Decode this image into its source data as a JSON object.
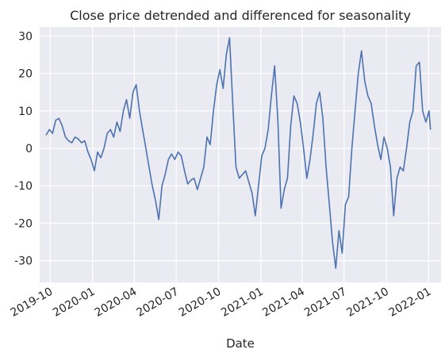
{
  "chart_data": {
    "type": "line",
    "title": "Close price detrended and differenced for seasonality",
    "xlabel": "Date",
    "ylabel": "",
    "xlim": [
      "2019-09-08",
      "2022-01-28"
    ],
    "ylim": [
      -35.8,
      32.4
    ],
    "x_ticks": [
      "2019-10",
      "2020-01",
      "2020-04",
      "2020-07",
      "2020-10",
      "2021-01",
      "2021-04",
      "2021-07",
      "2021-10",
      "2022-01"
    ],
    "y_ticks": [
      -30,
      -20,
      -10,
      0,
      10,
      20,
      30
    ],
    "grid": true,
    "legend": "none",
    "line_color": "#4c72b0",
    "background_color": "#eaeaf2",
    "series": [
      {
        "points": [
          [
            "2019-09-22",
            3.5
          ],
          [
            "2019-09-29",
            5.0
          ],
          [
            "2019-10-06",
            4.0
          ],
          [
            "2019-10-13",
            7.5
          ],
          [
            "2019-10-20",
            8.0
          ],
          [
            "2019-10-27",
            6.0
          ],
          [
            "2019-11-03",
            3.0
          ],
          [
            "2019-11-10",
            2.0
          ],
          [
            "2019-11-17",
            1.5
          ],
          [
            "2019-11-24",
            3.0
          ],
          [
            "2019-12-01",
            2.5
          ],
          [
            "2019-12-08",
            1.5
          ],
          [
            "2019-12-15",
            2.0
          ],
          [
            "2019-12-22",
            -1.0
          ],
          [
            "2019-12-29",
            -3.0
          ],
          [
            "2020-01-05",
            -6.0
          ],
          [
            "2020-01-12",
            -1.0
          ],
          [
            "2020-01-19",
            -2.5
          ],
          [
            "2020-01-26",
            0.0
          ],
          [
            "2020-02-02",
            4.0
          ],
          [
            "2020-02-09",
            5.0
          ],
          [
            "2020-02-16",
            3.0
          ],
          [
            "2020-02-23",
            7.0
          ],
          [
            "2020-03-01",
            4.5
          ],
          [
            "2020-03-08",
            10.0
          ],
          [
            "2020-03-15",
            13.0
          ],
          [
            "2020-03-22",
            8.0
          ],
          [
            "2020-03-29",
            15.0
          ],
          [
            "2020-04-05",
            17.0
          ],
          [
            "2020-04-12",
            10.0
          ],
          [
            "2020-04-19",
            5.0
          ],
          [
            "2020-04-26",
            0.0
          ],
          [
            "2020-05-03",
            -5.0
          ],
          [
            "2020-05-10",
            -10.0
          ],
          [
            "2020-05-17",
            -14.0
          ],
          [
            "2020-05-24",
            -19.0
          ],
          [
            "2020-05-31",
            -10.0
          ],
          [
            "2020-06-07",
            -7.0
          ],
          [
            "2020-06-14",
            -3.0
          ],
          [
            "2020-06-21",
            -1.5
          ],
          [
            "2020-06-28",
            -3.0
          ],
          [
            "2020-07-05",
            -1.0
          ],
          [
            "2020-07-12",
            -2.0
          ],
          [
            "2020-07-19",
            -6.0
          ],
          [
            "2020-07-26",
            -9.5
          ],
          [
            "2020-08-02",
            -8.5
          ],
          [
            "2020-08-09",
            -8.0
          ],
          [
            "2020-08-16",
            -11.0
          ],
          [
            "2020-08-23",
            -8.0
          ],
          [
            "2020-08-30",
            -5.0
          ],
          [
            "2020-09-06",
            3.0
          ],
          [
            "2020-09-13",
            1.0
          ],
          [
            "2020-09-20",
            10.0
          ],
          [
            "2020-09-27",
            17.0
          ],
          [
            "2020-10-04",
            21.0
          ],
          [
            "2020-10-11",
            16.0
          ],
          [
            "2020-10-18",
            25.0
          ],
          [
            "2020-10-25",
            29.5
          ],
          [
            "2020-11-01",
            12.0
          ],
          [
            "2020-11-08",
            -5.0
          ],
          [
            "2020-11-15",
            -8.0
          ],
          [
            "2020-11-22",
            -7.0
          ],
          [
            "2020-11-29",
            -6.0
          ],
          [
            "2020-12-06",
            -9.0
          ],
          [
            "2020-12-13",
            -12.0
          ],
          [
            "2020-12-20",
            -18.0
          ],
          [
            "2020-12-27",
            -10.0
          ],
          [
            "2021-01-03",
            -2.0
          ],
          [
            "2021-01-10",
            0.0
          ],
          [
            "2021-01-17",
            5.0
          ],
          [
            "2021-01-24",
            14.0
          ],
          [
            "2021-01-31",
            22.0
          ],
          [
            "2021-02-07",
            8.0
          ],
          [
            "2021-02-14",
            -16.0
          ],
          [
            "2021-02-21",
            -11.0
          ],
          [
            "2021-02-28",
            -8.0
          ],
          [
            "2021-03-07",
            6.0
          ],
          [
            "2021-03-14",
            14.0
          ],
          [
            "2021-03-21",
            12.0
          ],
          [
            "2021-03-28",
            7.0
          ],
          [
            "2021-04-04",
            0.0
          ],
          [
            "2021-04-11",
            -8.0
          ],
          [
            "2021-04-18",
            -3.0
          ],
          [
            "2021-04-25",
            4.0
          ],
          [
            "2021-05-02",
            12.0
          ],
          [
            "2021-05-09",
            15.0
          ],
          [
            "2021-05-16",
            8.0
          ],
          [
            "2021-05-23",
            -5.0
          ],
          [
            "2021-05-30",
            -15.0
          ],
          [
            "2021-06-06",
            -25.0
          ],
          [
            "2021-06-13",
            -32.0
          ],
          [
            "2021-06-20",
            -22.0
          ],
          [
            "2021-06-27",
            -28.0
          ],
          [
            "2021-07-04",
            -15.0
          ],
          [
            "2021-07-11",
            -13.0
          ],
          [
            "2021-07-18",
            0.0
          ],
          [
            "2021-07-25",
            10.0
          ],
          [
            "2021-08-01",
            20.0
          ],
          [
            "2021-08-08",
            26.0
          ],
          [
            "2021-08-15",
            18.0
          ],
          [
            "2021-08-22",
            14.0
          ],
          [
            "2021-08-29",
            12.0
          ],
          [
            "2021-09-05",
            6.0
          ],
          [
            "2021-09-12",
            1.0
          ],
          [
            "2021-09-19",
            -3.0
          ],
          [
            "2021-09-26",
            3.0
          ],
          [
            "2021-10-03",
            0.0
          ],
          [
            "2021-10-10",
            -5.0
          ],
          [
            "2021-10-17",
            -18.0
          ],
          [
            "2021-10-24",
            -8.0
          ],
          [
            "2021-10-31",
            -5.0
          ],
          [
            "2021-11-07",
            -6.0
          ],
          [
            "2021-11-14",
            0.0
          ],
          [
            "2021-11-21",
            7.0
          ],
          [
            "2021-11-28",
            10.0
          ],
          [
            "2021-12-05",
            22.0
          ],
          [
            "2021-12-12",
            23.0
          ],
          [
            "2021-12-19",
            10.0
          ],
          [
            "2021-12-26",
            7.0
          ],
          [
            "2022-01-02",
            10.0
          ],
          [
            "2022-01-05",
            5.0
          ]
        ]
      }
    ]
  }
}
